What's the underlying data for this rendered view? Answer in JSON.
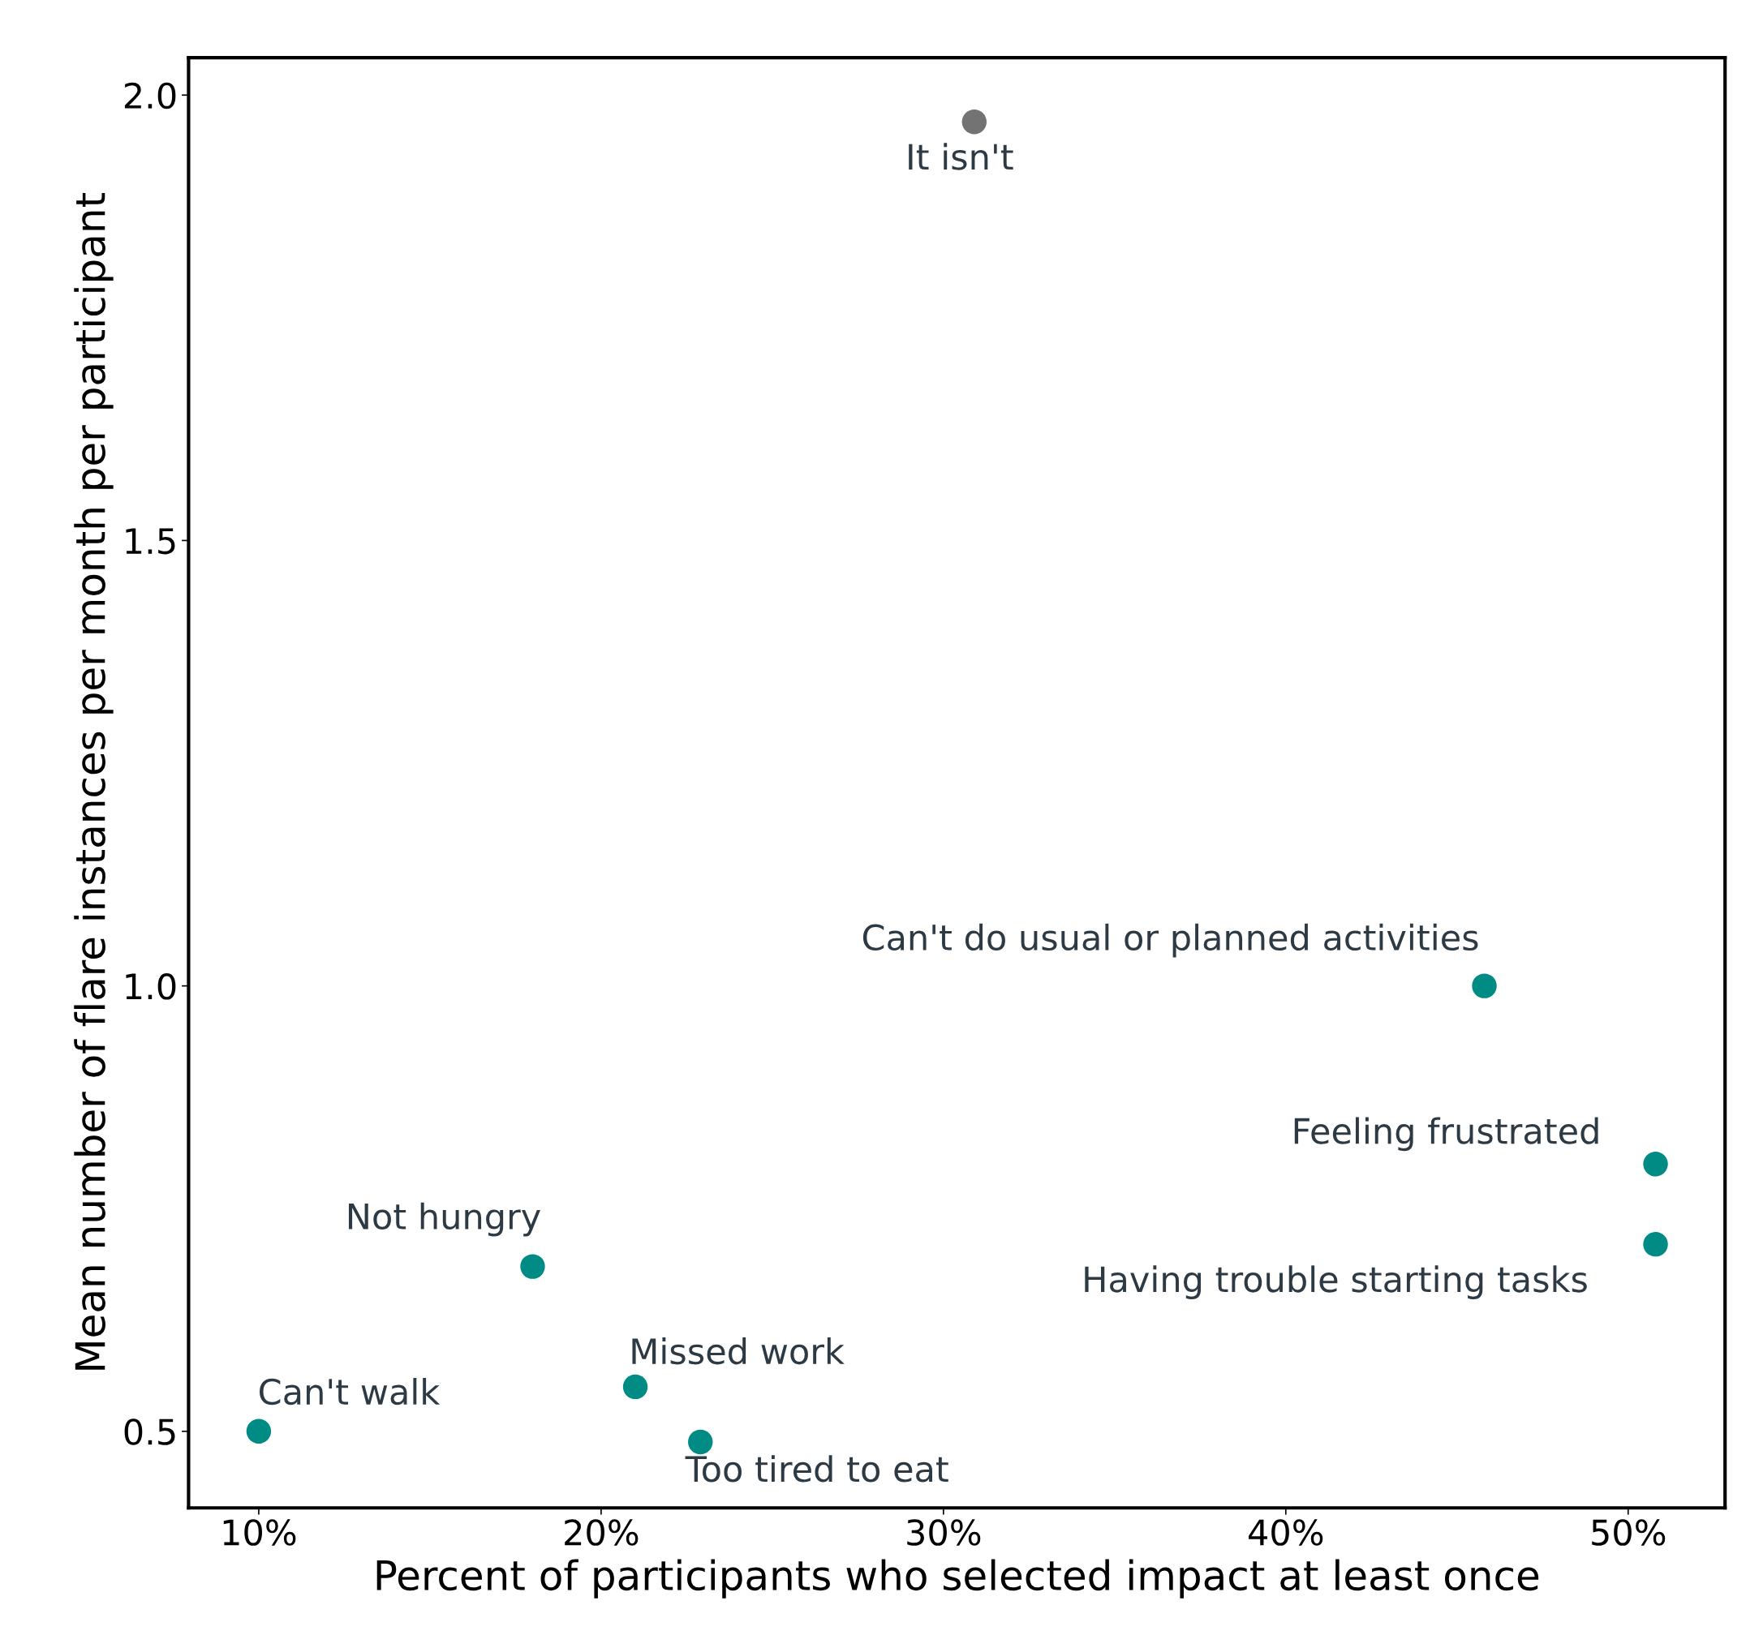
{
  "chart_data": {
    "type": "scatter",
    "xlabel": "Percent of participants who selected impact at least once",
    "ylabel": "Mean number of flare instances per month per participant",
    "x": [
      30.9,
      45.8,
      50.8,
      50.8,
      18.0,
      21.0,
      10.0,
      22.9
    ],
    "values": [
      1.97,
      1.0,
      0.8,
      0.71,
      0.685,
      0.55,
      0.5,
      0.488
    ],
    "colors": [
      "#737373",
      "#008b84",
      "#008b84",
      "#008b84",
      "#008b84",
      "#008b84",
      "#008b84",
      "#008b84"
    ],
    "annotations": [
      {
        "text": "It isn't",
        "x": 30.9,
        "y": 1.97
      },
      {
        "text": "Can't do usual or planned activities",
        "x": 45.8,
        "y": 1.0
      },
      {
        "text": "Feeling frustrated",
        "x": 50.8,
        "y": 0.8
      },
      {
        "text": "Having trouble starting tasks",
        "x": 50.8,
        "y": 0.71
      },
      {
        "text": "Not hungry",
        "x": 18.0,
        "y": 0.685
      },
      {
        "text": "Missed work",
        "x": 21.0,
        "y": 0.55
      },
      {
        "text": "Can't walk",
        "x": 10.0,
        "y": 0.5
      },
      {
        "text": "Too tired to eat",
        "x": 22.9,
        "y": 0.488
      }
    ],
    "xlim": [
      7.95,
      52.83
    ],
    "ylim": [
      0.414,
      2.042
    ],
    "xticks": [
      {
        "value": 10,
        "label": "10%"
      },
      {
        "value": 20,
        "label": "20%"
      },
      {
        "value": 30,
        "label": "30%"
      },
      {
        "value": 40,
        "label": "40%"
      },
      {
        "value": 50,
        "label": "50%"
      }
    ],
    "yticks": [
      {
        "value": 0.5,
        "label": "0.5"
      },
      {
        "value": 1.0,
        "label": "1.0"
      },
      {
        "value": 1.5,
        "label": "1.5"
      },
      {
        "value": 2.0,
        "label": "2.0"
      }
    ],
    "marker": "circle",
    "grid": false
  }
}
